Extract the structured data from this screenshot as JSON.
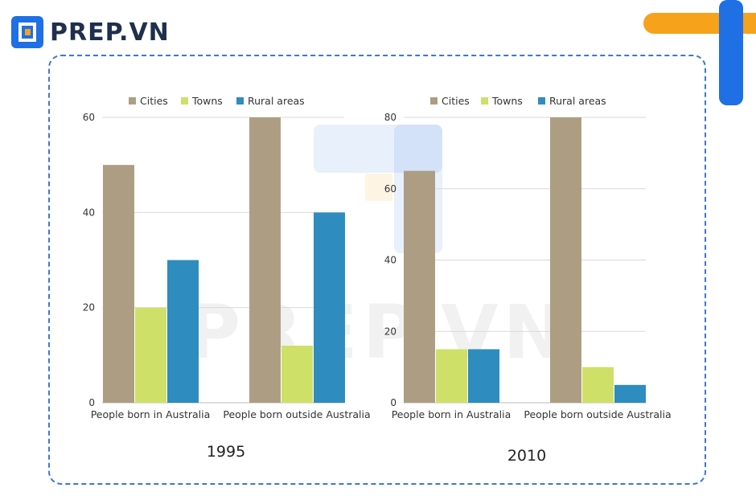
{
  "brand": {
    "name": "PREP.VN",
    "watermark": "PREP.VN"
  },
  "colors": {
    "cities": "#ad9e83",
    "towns": "#cfe069",
    "rural": "#2e8cbf",
    "frame": "#3a78d6",
    "brand_blue": "#1f6fe5",
    "brand_orange": "#f7a21b"
  },
  "chart_data": [
    {
      "type": "bar",
      "title": "1995",
      "categories": [
        "People born in Australia",
        "People born outside Australia"
      ],
      "series": [
        {
          "name": "Cities",
          "values": [
            50,
            60
          ]
        },
        {
          "name": "Towns",
          "values": [
            20,
            12
          ]
        },
        {
          "name": "Rural areas",
          "values": [
            30,
            40
          ]
        }
      ],
      "yticks": [
        "0",
        "20",
        "40",
        "60"
      ],
      "ylim": [
        0,
        60
      ],
      "grid": true,
      "legend": "top"
    },
    {
      "type": "bar",
      "title": "2010",
      "categories": [
        "People born in Australia",
        "People born outside Australia"
      ],
      "series": [
        {
          "name": "Cities",
          "values": [
            65,
            80
          ]
        },
        {
          "name": "Towns",
          "values": [
            15,
            10
          ]
        },
        {
          "name": "Rural areas",
          "values": [
            15,
            5
          ]
        }
      ],
      "yticks": [
        "0",
        "20",
        "40",
        "60",
        "80"
      ],
      "ylim": [
        0,
        80
      ],
      "grid": true,
      "legend": "top"
    }
  ]
}
